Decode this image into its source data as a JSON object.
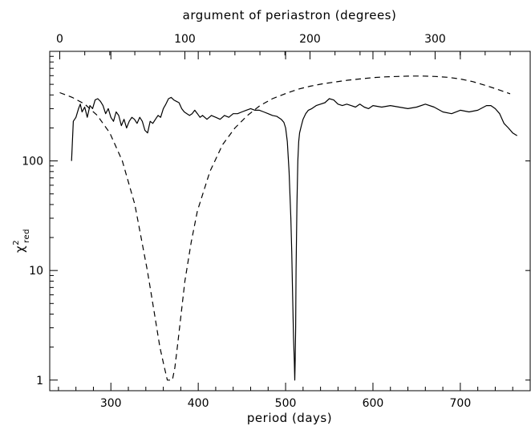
{
  "chart_data": {
    "type": "line",
    "x_axis": {
      "label": "period (days)",
      "range": [
        230,
        780
      ],
      "ticks": [
        300,
        400,
        500,
        600,
        700
      ],
      "tick_labels": [
        "300",
        "400",
        "500",
        "600",
        "700"
      ]
    },
    "top_axis": {
      "label": "argument of periastron (degrees)",
      "range": [
        -8,
        376
      ],
      "ticks": [
        0,
        100,
        200,
        300
      ],
      "tick_labels": [
        "0",
        "100",
        "200",
        "300"
      ]
    },
    "y_axis": {
      "label": "χ",
      "label_sup": "2",
      "label_sub": "red",
      "scale": "log",
      "range": [
        0.8,
        1000
      ],
      "ticks": [
        1,
        10,
        100
      ],
      "tick_labels": [
        "1",
        "10",
        "100"
      ]
    },
    "series": [
      {
        "style": "solid",
        "axis": "bottom",
        "x": [
          255,
          257,
          260,
          263,
          265,
          267,
          270,
          273,
          276,
          279,
          282,
          285,
          288,
          291,
          294,
          297,
          300,
          303,
          306,
          309,
          312,
          315,
          318,
          321,
          324,
          327,
          330,
          333,
          336,
          339,
          342,
          345,
          348,
          351,
          354,
          357,
          360,
          363,
          366,
          369,
          372,
          375,
          378,
          381,
          384,
          387,
          390,
          393,
          396,
          399,
          402,
          405,
          410,
          415,
          420,
          425,
          430,
          435,
          440,
          445,
          450,
          455,
          460,
          465,
          470,
          475,
          480,
          485,
          490,
          495,
          498,
          500,
          502,
          504,
          506,
          507,
          508,
          509,
          510,
          510.5,
          511,
          511.5,
          512,
          513,
          514,
          515,
          516,
          518,
          520,
          523,
          526,
          530,
          535,
          540,
          545,
          550,
          555,
          560,
          565,
          570,
          575,
          580,
          585,
          590,
          595,
          600,
          610,
          620,
          630,
          640,
          650,
          660,
          670,
          680,
          690,
          700,
          710,
          720,
          730,
          735,
          740,
          745,
          750,
          755,
          760,
          765
        ],
        "y": [
          100,
          230,
          250,
          300,
          330,
          280,
          310,
          250,
          320,
          300,
          360,
          370,
          350,
          320,
          270,
          300,
          250,
          230,
          280,
          260,
          210,
          240,
          200,
          230,
          250,
          240,
          220,
          250,
          230,
          190,
          180,
          230,
          220,
          240,
          260,
          250,
          300,
          330,
          370,
          380,
          360,
          350,
          340,
          300,
          280,
          270,
          260,
          270,
          290,
          270,
          250,
          260,
          240,
          260,
          250,
          240,
          260,
          250,
          270,
          270,
          280,
          290,
          300,
          290,
          290,
          280,
          270,
          260,
          255,
          240,
          225,
          200,
          150,
          80,
          30,
          15,
          6,
          2.5,
          1.5,
          1.0,
          1.5,
          3,
          10,
          40,
          100,
          150,
          180,
          210,
          240,
          270,
          290,
          300,
          320,
          330,
          340,
          370,
          360,
          330,
          320,
          330,
          320,
          310,
          330,
          310,
          300,
          320,
          310,
          320,
          310,
          300,
          310,
          330,
          310,
          280,
          270,
          290,
          280,
          290,
          320,
          320,
          300,
          270,
          220,
          200,
          180,
          170
        ]
      },
      {
        "style": "dashed",
        "axis": "top",
        "x": [
          0,
          10,
          20,
          30,
          40,
          50,
          60,
          70,
          75,
          80,
          83,
          86,
          88,
          90,
          92,
          94,
          97,
          100,
          105,
          110,
          120,
          130,
          140,
          150,
          160,
          170,
          180,
          190,
          200,
          210,
          220,
          230,
          240,
          250,
          260,
          270,
          280,
          290,
          300,
          310,
          320,
          330,
          340,
          350,
          360
        ],
        "y": [
          420,
          380,
          330,
          260,
          180,
          100,
          40,
          10,
          4.5,
          2,
          1.4,
          1.0,
          1.0,
          1.0,
          1.3,
          2,
          4,
          8,
          18,
          35,
          80,
          140,
          200,
          260,
          320,
          370,
          410,
          450,
          480,
          505,
          525,
          545,
          560,
          575,
          585,
          590,
          595,
          595,
          590,
          580,
          560,
          530,
          490,
          450,
          410
        ]
      }
    ]
  }
}
